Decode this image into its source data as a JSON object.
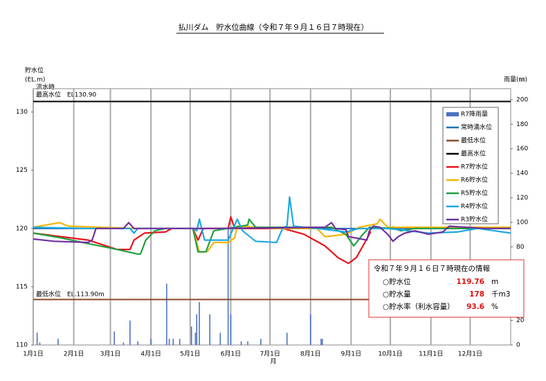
{
  "chart_data": {
    "type": "line",
    "title": "払川ダム　貯水位曲線（令和７年９月１６日７時現在）",
    "y_label": "貯水位",
    "y_unit": "(EL.m)",
    "y2_label": "雨量(㎜)",
    "x_label": "月",
    "annotations": [
      "洪水時",
      "最高水位　EL130.90",
      "最低水位　EL.113.90m"
    ],
    "xlim": [
      0,
      365
    ],
    "xticks": [
      {
        "value": 0,
        "label": "1月1日"
      },
      {
        "value": 31,
        "label": "2月1日"
      },
      {
        "value": 59,
        "label": "3月1日"
      },
      {
        "value": 90,
        "label": "4月1日"
      },
      {
        "value": 120,
        "label": "5月1日"
      },
      {
        "value": 151,
        "label": "6月1日"
      },
      {
        "value": 181,
        "label": "7月1日"
      },
      {
        "value": 212,
        "label": "8月1日"
      },
      {
        "value": 243,
        "label": "9月1日"
      },
      {
        "value": 273,
        "label": "10月1日"
      },
      {
        "value": 304,
        "label": "11月1日"
      },
      {
        "value": 334,
        "label": "12月1日"
      }
    ],
    "ylim": [
      110,
      132
    ],
    "yticks": [
      110,
      115,
      120,
      125,
      130
    ],
    "y2lim": [
      0,
      209
    ],
    "y2ticks": [
      0,
      20,
      40,
      60,
      80,
      100,
      120,
      140,
      160,
      180,
      200
    ],
    "grid": true,
    "series": [
      {
        "name": "R7降雨量",
        "type": "bar",
        "axis": "y2",
        "color": "#4a72c4",
        "x": [
          3,
          5,
          19,
          62,
          69,
          74,
          80,
          90,
          102,
          104,
          107,
          112,
          121,
          124,
          125,
          127,
          135,
          143,
          149,
          151,
          159,
          164,
          174,
          194,
          212,
          220,
          221
        ],
        "values": [
          10,
          2,
          5,
          11,
          2,
          20,
          3,
          5,
          50,
          5,
          5,
          5,
          15,
          10,
          25,
          35,
          25,
          10,
          95,
          25,
          3,
          3,
          5,
          10,
          25,
          5,
          5
        ]
      },
      {
        "name": "常時満水位",
        "type": "hline",
        "color": "#1f6fb5",
        "values": [
          120
        ]
      },
      {
        "name": "最低水位",
        "type": "hline",
        "color": "#8b4a2b",
        "values": [
          113.9
        ]
      },
      {
        "name": "最高水位",
        "type": "hline",
        "color": "#000000",
        "values": [
          130.9
        ]
      },
      {
        "name": "R7貯水位",
        "type": "line",
        "color": "#e8141b",
        "x": [
          0,
          42,
          64,
          74,
          77,
          85,
          101,
          106,
          122,
          126,
          130,
          149,
          151,
          154,
          191,
          207,
          223,
          233,
          241,
          247,
          252,
          257,
          258
        ],
        "values": [
          119.6,
          119,
          118.2,
          118.2,
          119,
          119.6,
          119.7,
          120,
          120,
          119,
          120,
          120,
          121,
          120,
          120,
          119.5,
          118.5,
          117.5,
          117,
          117.5,
          118.5,
          119.5,
          119.76
        ]
      },
      {
        "name": "R6貯水位",
        "type": "line",
        "color": "#f5b400",
        "x": [
          0,
          20,
          27,
          80,
          122,
          127,
          133,
          138,
          149,
          154,
          156,
          186,
          217,
          223,
          239,
          249,
          263,
          265,
          271,
          365
        ],
        "values": [
          120.1,
          120.5,
          120.2,
          120,
          120,
          118,
          118,
          118.8,
          118.8,
          119.2,
          120.2,
          120,
          120,
          119.3,
          119.5,
          120.1,
          120.4,
          120.8,
          120.1,
          120.1
        ]
      },
      {
        "name": "R5貯水位",
        "type": "line",
        "color": "#1fa040",
        "x": [
          0,
          21,
          42,
          64,
          80,
          82,
          86,
          93,
          101,
          122,
          126,
          132,
          138,
          164,
          165,
          170,
          228,
          239,
          245,
          252,
          257,
          276,
          281,
          292,
          365
        ],
        "values": [
          119.6,
          119.2,
          118.7,
          118.2,
          117.8,
          117.8,
          119,
          119.8,
          120,
          120,
          118,
          118,
          119.8,
          120.3,
          120.8,
          120.1,
          120.1,
          119.5,
          118.5,
          119.5,
          120.1,
          120,
          119.8,
          120,
          120
        ]
      },
      {
        "name": "R4貯水位",
        "type": "line",
        "color": "#1ea8e0",
        "x": [
          0,
          42,
          74,
          77,
          80,
          122,
          125,
          127,
          131,
          149,
          156,
          160,
          170,
          186,
          191,
          194,
          196,
          199,
          217,
          239,
          249,
          271,
          302,
          324,
          340,
          365
        ],
        "values": [
          120.1,
          120,
          120,
          119.6,
          120,
          120,
          119.8,
          120.8,
          119,
          119,
          120.8,
          119.8,
          118.9,
          118.8,
          120.1,
          120.2,
          122.7,
          120.2,
          120,
          119.7,
          120,
          120,
          119.6,
          119.7,
          120,
          119.6
        ]
      },
      {
        "name": "R3貯水位",
        "type": "line",
        "color": "#7030a0",
        "x": [
          0,
          16,
          42,
          45,
          48,
          69,
          73,
          77,
          133,
          223,
          228,
          231,
          239,
          241,
          255,
          257,
          260,
          265,
          271,
          275,
          279,
          284,
          292,
          302,
          313,
          318,
          345,
          365
        ],
        "values": [
          119.1,
          118.9,
          118.8,
          119,
          120,
          120,
          120.5,
          120,
          120,
          120.1,
          120.5,
          120,
          119.9,
          119.3,
          119,
          119.8,
          120.2,
          120.1,
          119.5,
          118.9,
          119.3,
          119.6,
          119.8,
          119.5,
          119.7,
          120.2,
          120,
          120
        ]
      }
    ]
  },
  "info_box": {
    "title": "令和７年９月１６日７時現在の情報",
    "rows": [
      {
        "label": "○貯水位",
        "value": 119.76,
        "unit": "m"
      },
      {
        "label": "○貯水量",
        "value": 178,
        "unit": "千m3"
      },
      {
        "label": "○貯水率（利水容量）",
        "value": 93.6,
        "unit": "%"
      }
    ]
  }
}
